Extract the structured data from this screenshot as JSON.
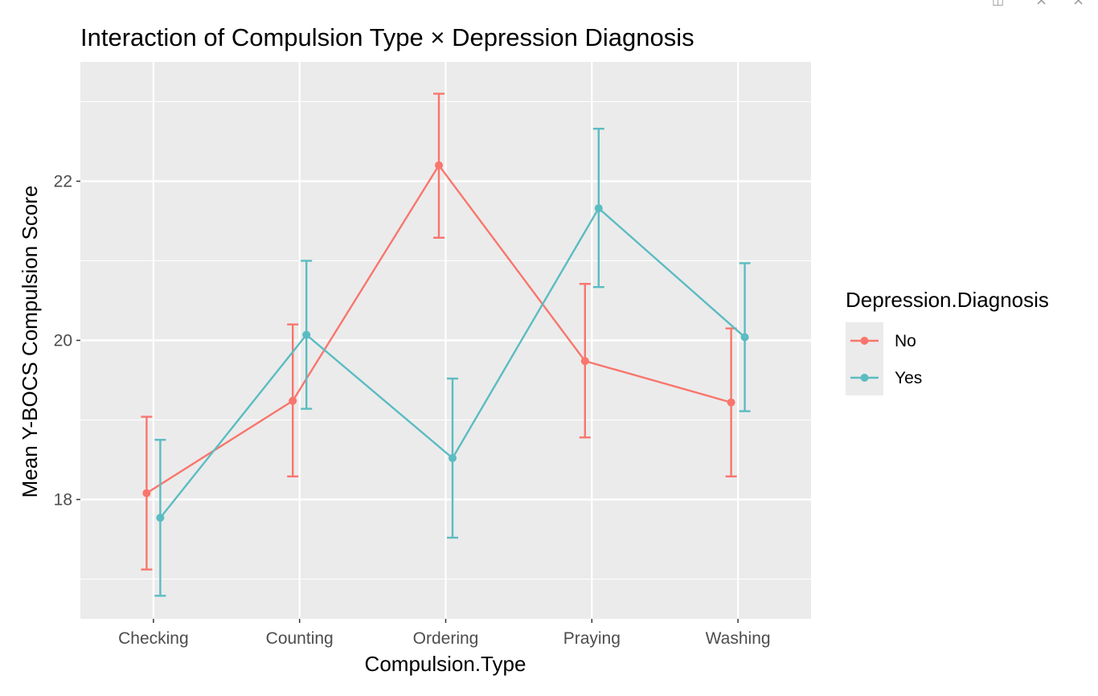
{
  "window_controls": {
    "icon1": "popout-icon",
    "close1": "×",
    "close2": "×"
  },
  "chart_data": {
    "type": "line",
    "title": "Interaction of Compulsion Type × Depression Diagnosis",
    "xlabel": "Compulsion.Type",
    "ylabel": "Mean Y-BOCS Compulsion Score",
    "categories": [
      "Checking",
      "Counting",
      "Ordering",
      "Praying",
      "Washing"
    ],
    "ylim": [
      16.5,
      23.5
    ],
    "yticks": [
      18,
      20,
      22
    ],
    "grid": true,
    "error_bars": true,
    "legend": {
      "title": "Depression.Diagnosis",
      "position": "right"
    },
    "series": [
      {
        "name": "No",
        "color": "#F8766D",
        "values": [
          18.08,
          19.24,
          22.2,
          19.74,
          19.22
        ],
        "lower": [
          17.12,
          18.29,
          21.29,
          18.78,
          18.29
        ],
        "upper": [
          19.04,
          20.2,
          23.1,
          20.71,
          20.15
        ]
      },
      {
        "name": "Yes",
        "color": "#5BBCC2",
        "values": [
          17.77,
          20.07,
          18.52,
          21.66,
          20.04
        ],
        "lower": [
          16.79,
          19.14,
          17.52,
          20.67,
          19.11
        ],
        "upper": [
          18.75,
          21.0,
          19.52,
          22.66,
          20.97
        ]
      }
    ]
  }
}
